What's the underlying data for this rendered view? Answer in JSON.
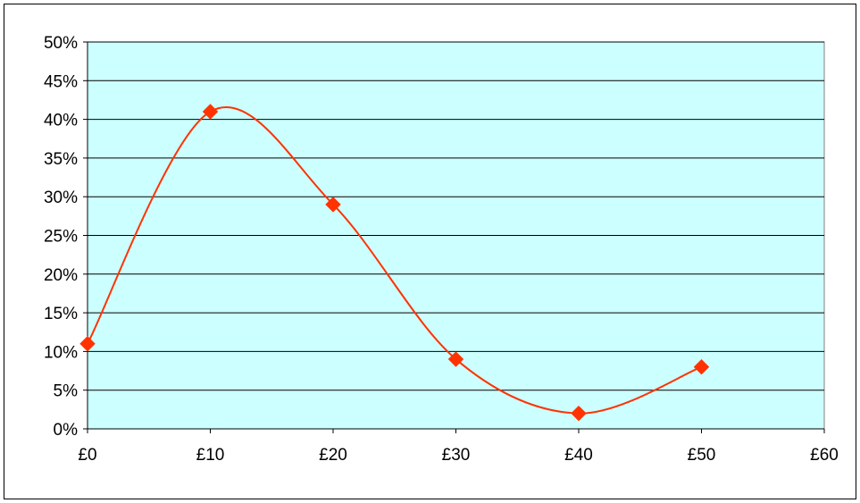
{
  "chart_data": {
    "type": "line",
    "title": "",
    "xlabel": "",
    "ylabel": "",
    "x": [
      0,
      10,
      20,
      30,
      40,
      50
    ],
    "series": [
      {
        "values": [
          11,
          41,
          29,
          9,
          2,
          8
        ]
      }
    ],
    "xlim": [
      0,
      60
    ],
    "ylim": [
      0,
      50
    ],
    "x_ticks": [
      0,
      10,
      20,
      30,
      40,
      50,
      60
    ],
    "x_tick_labels": [
      "£0",
      "£10",
      "£20",
      "£30",
      "£40",
      "£50",
      "£60"
    ],
    "y_ticks": [
      0,
      5,
      10,
      15,
      20,
      25,
      30,
      35,
      40,
      45,
      50
    ],
    "y_tick_labels": [
      "0%",
      "5%",
      "10%",
      "15%",
      "20%",
      "25%",
      "30%",
      "35%",
      "40%",
      "45%",
      "50%"
    ],
    "grid": "horizontal",
    "smoothed": true,
    "marker": "diamond",
    "colors": {
      "plot_background": "#ccffff",
      "line": "#ff3300",
      "marker": "#ff3300",
      "gridline": "#000000"
    }
  }
}
